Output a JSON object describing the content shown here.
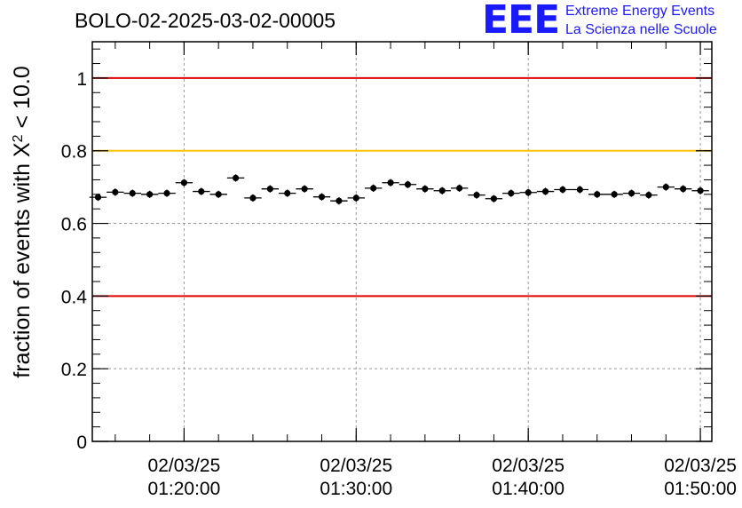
{
  "header": {
    "title": "BOLO-02-2025-03-02-00005"
  },
  "logo": {
    "mark": "EEE",
    "line1": "Extreme Energy Events",
    "line2": "La Scienza nelle Scuole",
    "color": "#1a1aff"
  },
  "chart_data": {
    "type": "scatter",
    "title": "BOLO-02-2025-03-02-00005",
    "xlabel": "",
    "ylabel": "fraction of events with X² < 10.0",
    "ylabel_main": "fraction of events with X",
    "ylabel_sup": "2",
    "ylabel_tail": " < 10.0",
    "xlim": [
      "01:14:40",
      "01:50:40"
    ],
    "ylim": [
      0,
      1.1
    ],
    "y_ticks": [
      0,
      0.2,
      0.4,
      0.6,
      0.8,
      1
    ],
    "y_tick_labels": [
      "0",
      "0.2",
      "0.4",
      "0.6",
      "0.8",
      "1"
    ],
    "x_ticks": [
      {
        "time": "01:20:00",
        "date_label": "02/03/25",
        "time_label": "01:20:00"
      },
      {
        "time": "01:30:00",
        "date_label": "02/03/25",
        "time_label": "01:30:00"
      },
      {
        "time": "01:40:00",
        "date_label": "02/03/25",
        "time_label": "01:40:00"
      },
      {
        "time": "01:50:00",
        "date_label": "02/03/25",
        "time_label": "01:50:00"
      }
    ],
    "grid": true,
    "reference_lines": [
      {
        "y": 1.0,
        "color": "#e00000"
      },
      {
        "y": 0.8,
        "color": "#ffc000"
      },
      {
        "y": 0.4,
        "color": "#e00000"
      }
    ],
    "bin_width_minutes": 1,
    "series": [
      {
        "marker_color": "#000000",
        "points": [
          {
            "x": "01:15:00",
            "y": 0.672,
            "err": 0.01
          },
          {
            "x": "01:16:00",
            "y": 0.686,
            "err": 0.01
          },
          {
            "x": "01:17:00",
            "y": 0.683,
            "err": 0.01
          },
          {
            "x": "01:18:00",
            "y": 0.68,
            "err": 0.01
          },
          {
            "x": "01:19:00",
            "y": 0.683,
            "err": 0.01
          },
          {
            "x": "01:20:00",
            "y": 0.712,
            "err": 0.01
          },
          {
            "x": "01:21:00",
            "y": 0.688,
            "err": 0.01
          },
          {
            "x": "01:22:00",
            "y": 0.68,
            "err": 0.01
          },
          {
            "x": "01:23:00",
            "y": 0.725,
            "err": 0.01
          },
          {
            "x": "01:24:00",
            "y": 0.67,
            "err": 0.01
          },
          {
            "x": "01:25:00",
            "y": 0.695,
            "err": 0.01
          },
          {
            "x": "01:26:00",
            "y": 0.683,
            "err": 0.01
          },
          {
            "x": "01:27:00",
            "y": 0.695,
            "err": 0.01
          },
          {
            "x": "01:28:00",
            "y": 0.673,
            "err": 0.01
          },
          {
            "x": "01:29:00",
            "y": 0.662,
            "err": 0.01
          },
          {
            "x": "01:30:00",
            "y": 0.67,
            "err": 0.01
          },
          {
            "x": "01:31:00",
            "y": 0.697,
            "err": 0.01
          },
          {
            "x": "01:32:00",
            "y": 0.712,
            "err": 0.01
          },
          {
            "x": "01:33:00",
            "y": 0.707,
            "err": 0.01
          },
          {
            "x": "01:34:00",
            "y": 0.695,
            "err": 0.01
          },
          {
            "x": "01:35:00",
            "y": 0.69,
            "err": 0.01
          },
          {
            "x": "01:36:00",
            "y": 0.697,
            "err": 0.01
          },
          {
            "x": "01:37:00",
            "y": 0.678,
            "err": 0.01
          },
          {
            "x": "01:38:00",
            "y": 0.668,
            "err": 0.01
          },
          {
            "x": "01:39:00",
            "y": 0.683,
            "err": 0.01
          },
          {
            "x": "01:40:00",
            "y": 0.685,
            "err": 0.01
          },
          {
            "x": "01:41:00",
            "y": 0.688,
            "err": 0.01
          },
          {
            "x": "01:42:00",
            "y": 0.693,
            "err": 0.01
          },
          {
            "x": "01:43:00",
            "y": 0.693,
            "err": 0.01
          },
          {
            "x": "01:44:00",
            "y": 0.68,
            "err": 0.01
          },
          {
            "x": "01:45:00",
            "y": 0.68,
            "err": 0.01
          },
          {
            "x": "01:46:00",
            "y": 0.683,
            "err": 0.01
          },
          {
            "x": "01:47:00",
            "y": 0.678,
            "err": 0.01
          },
          {
            "x": "01:48:00",
            "y": 0.7,
            "err": 0.01
          },
          {
            "x": "01:49:00",
            "y": 0.695,
            "err": 0.01
          },
          {
            "x": "01:50:00",
            "y": 0.69,
            "err": 0.01
          }
        ]
      }
    ]
  }
}
